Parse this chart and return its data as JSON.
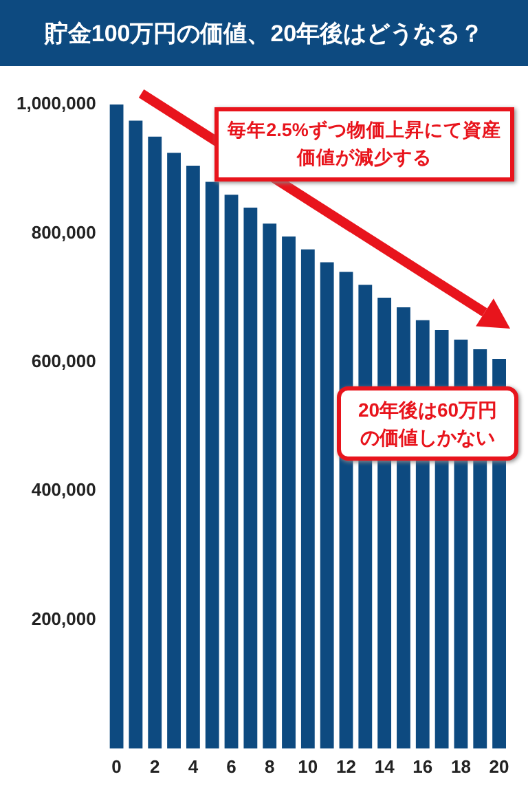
{
  "chart_data": {
    "type": "bar",
    "title": "貯金100万円の価値、20年後はどうなる？",
    "categories": [
      "0",
      null,
      "2",
      null,
      "4",
      null,
      "6",
      null,
      "8",
      null,
      "10",
      null,
      "12",
      null,
      "14",
      null,
      "16",
      null,
      "18",
      null,
      "20"
    ],
    "values": [
      1000000,
      975000,
      950000,
      925000,
      905000,
      880000,
      860000,
      840000,
      815000,
      795000,
      775000,
      755000,
      740000,
      720000,
      700000,
      685000,
      665000,
      650000,
      635000,
      620000,
      605000
    ],
    "color": "#0d4a80",
    "ylim": [
      0,
      1000000
    ],
    "yticks": [
      {
        "value": 200000,
        "label": "200,000"
      },
      {
        "value": 400000,
        "label": "400,000"
      },
      {
        "value": 600000,
        "label": "600,000"
      },
      {
        "value": 800000,
        "label": "800,000"
      },
      {
        "value": 1000000,
        "label": "1,000,000"
      }
    ],
    "grid": false,
    "annotations": [
      "毎年2.5%ずつ物価上昇にて資産価値が減少する",
      {
        "text": "20年後は60万円の価値しかない",
        "x": "20",
        "y": 605000
      }
    ]
  }
}
